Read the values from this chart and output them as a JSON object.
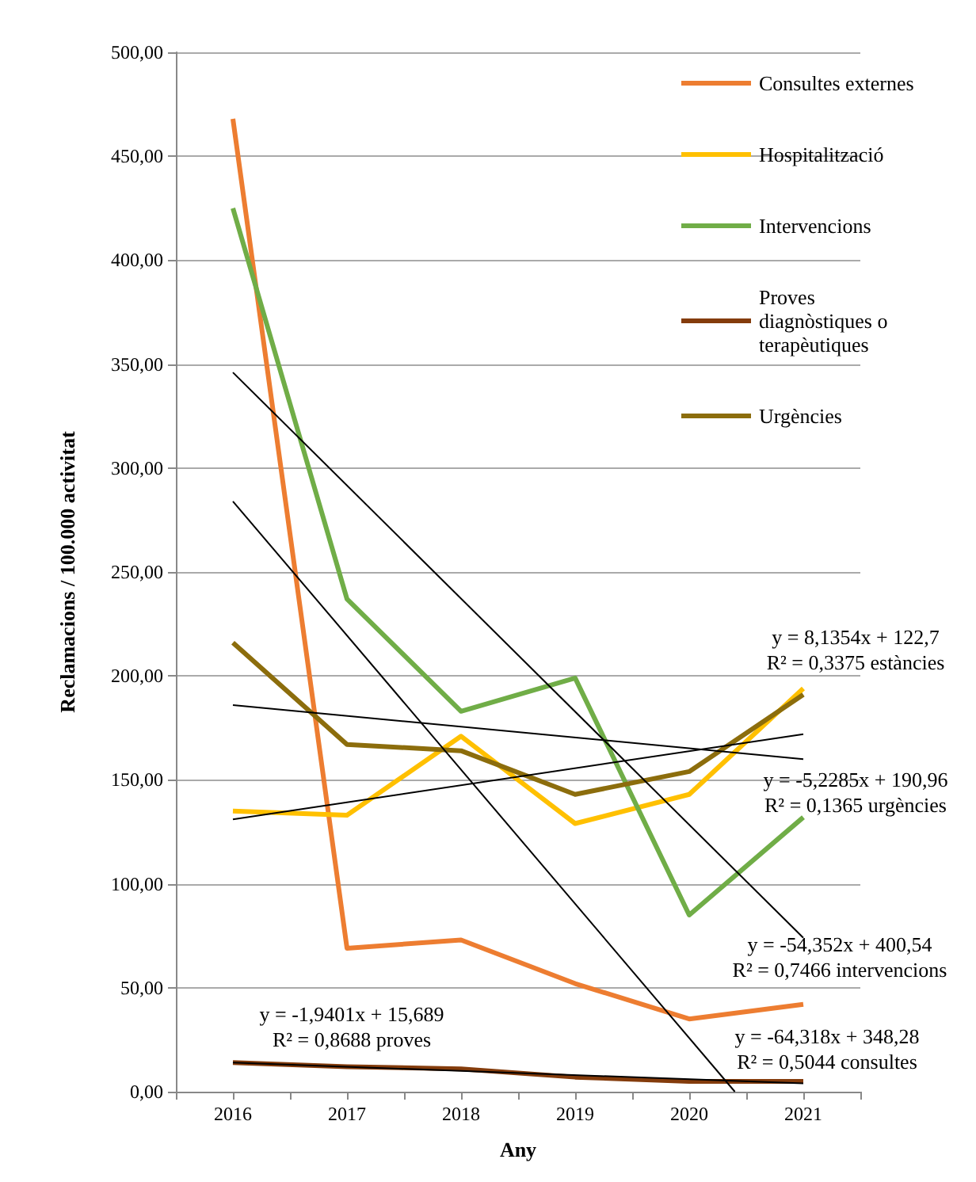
{
  "chart_data": {
    "type": "line",
    "xlabel": "Any",
    "ylabel": "Reclamacions / 100.000 activitat",
    "x": [
      2016,
      2017,
      2018,
      2019,
      2020,
      2021
    ],
    "xlim": [
      2015.5,
      2021.5
    ],
    "xticks": [
      {
        "value": 2015.5,
        "label": null
      },
      {
        "value": 2016,
        "label": "2016"
      },
      {
        "value": 2016.5,
        "label": null
      },
      {
        "value": 2017,
        "label": "2017"
      },
      {
        "value": 2017.5,
        "label": null
      },
      {
        "value": 2018,
        "label": "2018"
      },
      {
        "value": 2018.5,
        "label": null
      },
      {
        "value": 2019,
        "label": "2019"
      },
      {
        "value": 2019.5,
        "label": null
      },
      {
        "value": 2020,
        "label": "2020"
      },
      {
        "value": 2020.5,
        "label": null
      },
      {
        "value": 2021,
        "label": "2021"
      },
      {
        "value": 2021.5,
        "label": null
      }
    ],
    "ylim": [
      0,
      500
    ],
    "yticks": [
      {
        "value": 0,
        "label": "0,00"
      },
      {
        "value": 50,
        "label": "50,00"
      },
      {
        "value": 100,
        "label": "100,00"
      },
      {
        "value": 150,
        "label": "150,00"
      },
      {
        "value": 200,
        "label": "200,00"
      },
      {
        "value": 250,
        "label": "250,00"
      },
      {
        "value": 300,
        "label": "300,00"
      },
      {
        "value": 350,
        "label": "350,00"
      },
      {
        "value": 400,
        "label": "400,00"
      },
      {
        "value": 450,
        "label": "450,00"
      },
      {
        "value": 500,
        "label": "500,00"
      }
    ],
    "grid": "y",
    "legend": "top right",
    "marker": "none",
    "line_style": "solid",
    "series": [
      {
        "name": "Consultes externes",
        "color": "#ed7d31",
        "values": [
          468,
          69,
          73,
          52,
          35,
          42
        ]
      },
      {
        "name": "Hospitalització",
        "color": "#ffc000",
        "values": [
          135,
          133,
          171,
          129,
          143,
          194
        ]
      },
      {
        "name": "Intervencions",
        "color": "#70ad47",
        "values": [
          425,
          237,
          183,
          199,
          85,
          132
        ]
      },
      {
        "name": "Proves diagnòstiques o terapèutiques",
        "color": "#843c0c",
        "values": [
          14,
          12,
          11,
          7,
          5,
          5
        ]
      },
      {
        "name": "Urgències",
        "color": "#8c6d0c",
        "values": [
          216,
          167,
          164,
          143,
          154,
          191
        ]
      },
      {
        "color": "#000000",
        "x": [
          2016,
          2020.4
        ],
        "values": [
          284,
          0
        ]
      },
      {
        "color": "#000000",
        "x": [
          2016,
          2021
        ],
        "values": [
          346,
          74
        ]
      },
      {
        "color": "#000000",
        "x": [
          2016,
          2021
        ],
        "values": [
          186,
          160
        ]
      },
      {
        "color": "#000000",
        "x": [
          2016,
          2021
        ],
        "values": [
          131,
          172
        ]
      },
      {
        "color": "#000000",
        "x": [
          2016,
          2021
        ],
        "values": [
          14,
          4
        ]
      }
    ],
    "annotations": [
      "y = 8,1354x + 122,7\nR² = 0,3375 estàncies",
      "y = -5,2285x + 190,96\nR² = 0,1365 urgències",
      "y = -54,352x + 400,54\nR² = 0,7466 intervencions",
      "y = -64,318x + 348,28\nR² = 0,5044 consultes",
      "y = -1,9401x + 15,689\nR² = 0,8688 proves"
    ]
  }
}
